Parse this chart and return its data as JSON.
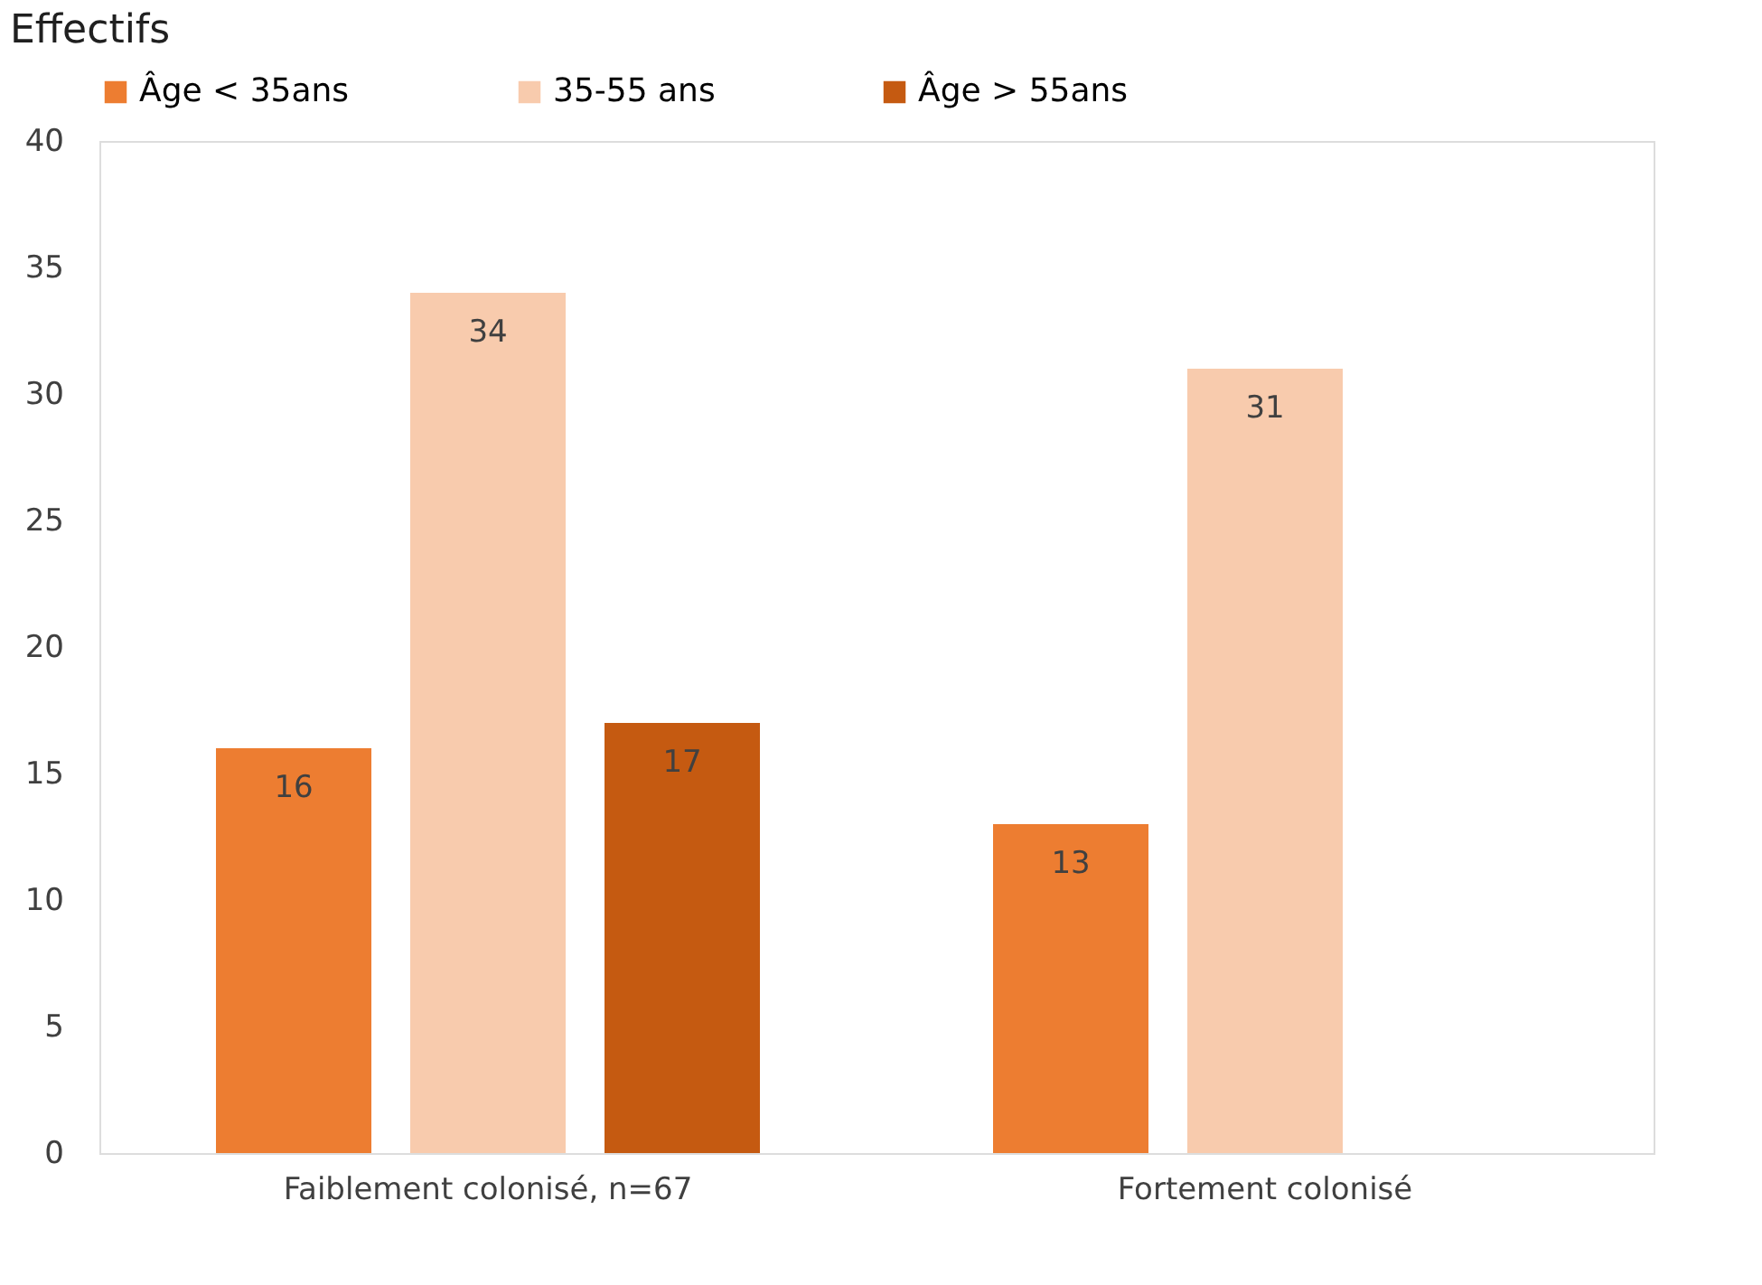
{
  "chart_data": {
    "type": "bar",
    "ylabel": "Effectifs",
    "categories": [
      "Faiblement colonisé, n=67",
      "Fortement colonisé"
    ],
    "series": [
      {
        "name": "Âge < 35ans",
        "color": "#ed7d31",
        "values": [
          16,
          13
        ]
      },
      {
        "name": "35-55 ans",
        "color": "#f8cbad",
        "values": [
          34,
          31
        ]
      },
      {
        "name": "Âge > 55ans",
        "color": "#c55a11",
        "values": [
          17,
          null
        ]
      }
    ],
    "ylim": [
      0,
      40
    ],
    "yticks": [
      0,
      5,
      10,
      15,
      20,
      25,
      30,
      35,
      40
    ],
    "data_labels": true,
    "grid": false,
    "legend": "top"
  }
}
